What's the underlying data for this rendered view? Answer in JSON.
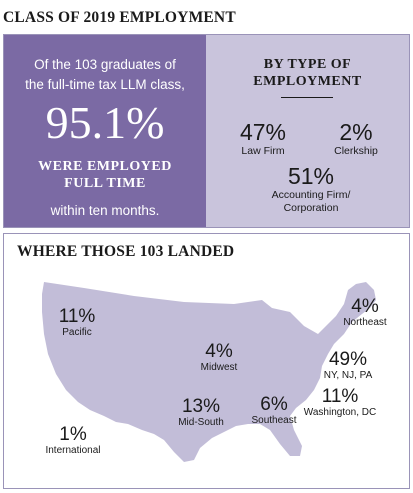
{
  "title": "CLASS OF 2019 EMPLOYMENT",
  "summary": {
    "line1": "Of the 103 graduates of",
    "line2": "the full-time tax LLM class,",
    "big_percent": "95.1%",
    "employed_line1": "WERE EMPLOYED",
    "employed_line2": "FULL TIME",
    "within": "within ten months."
  },
  "by_type": {
    "heading_line1": "BY TYPE OF",
    "heading_line2": "EMPLOYMENT",
    "items": [
      {
        "percent": "47%",
        "label": "Law Firm"
      },
      {
        "percent": "2%",
        "label": "Clerkship"
      },
      {
        "percent": "51%",
        "label_line1": "Accounting Firm/",
        "label_line2": "Corporation"
      }
    ]
  },
  "where": {
    "heading": "WHERE THOSE 103 LANDED",
    "regions": [
      {
        "percent": "11%",
        "label": "Pacific"
      },
      {
        "percent": "4%",
        "label": "Northeast"
      },
      {
        "percent": "4%",
        "label": "Midwest"
      },
      {
        "percent": "49%",
        "label": "NY, NJ, PA"
      },
      {
        "percent": "11%",
        "label": "Washington, DC"
      },
      {
        "percent": "13%",
        "label": "Mid-South"
      },
      {
        "percent": "6%",
        "label": "Southeast"
      },
      {
        "percent": "1%",
        "label": "International"
      }
    ]
  },
  "colors": {
    "panel_dark": "#7b6aa4",
    "panel_light": "#c9c4dc",
    "map_fill": "#c2bdd8",
    "border": "#9a93b8"
  }
}
